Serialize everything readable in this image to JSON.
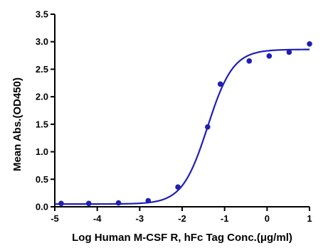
{
  "chart_data": {
    "type": "scatter",
    "title": "",
    "xlabel": "Log Human M-CSF R, hFc Tag Conc.(μg/ml)",
    "ylabel": "Mean Abs.(OD450)",
    "xlim": [
      -5,
      1
    ],
    "ylim": [
      0.0,
      3.5
    ],
    "x_ticks": [
      "-5",
      "-4",
      "-3",
      "-2",
      "-1",
      "0",
      "1"
    ],
    "y_ticks": [
      "0.0",
      "0.5",
      "1.0",
      "1.5",
      "2.0",
      "2.5",
      "3.0",
      "3.5"
    ],
    "grid": false,
    "legend": "none",
    "color": "#1f1fb4",
    "series": [
      {
        "points": [
          {
            "x": -4.85,
            "y": 0.06
          },
          {
            "x": -4.2,
            "y": 0.06
          },
          {
            "x": -3.5,
            "y": 0.07
          },
          {
            "x": -2.8,
            "y": 0.11
          },
          {
            "x": -2.1,
            "y": 0.36
          },
          {
            "x": -1.4,
            "y": 1.45
          },
          {
            "x": -1.1,
            "y": 2.23
          },
          {
            "x": -0.42,
            "y": 2.65
          },
          {
            "x": 0.05,
            "y": 2.74
          },
          {
            "x": 0.52,
            "y": 2.81
          },
          {
            "x": 1.0,
            "y": 2.96
          }
        ],
        "fit": {
          "model": "4PL",
          "bottom": 0.05,
          "top": 2.86,
          "logEC50": -1.4,
          "hill": 1.45
        }
      }
    ]
  }
}
